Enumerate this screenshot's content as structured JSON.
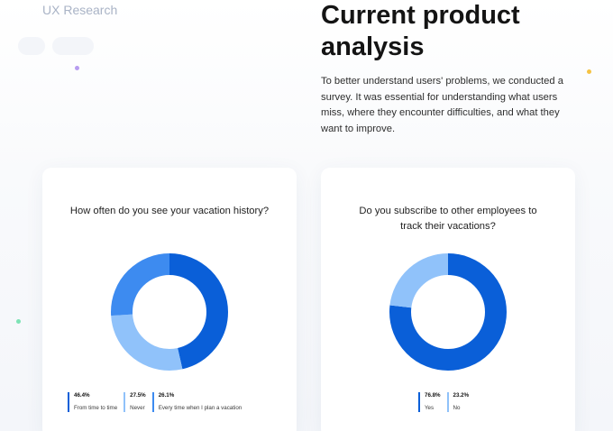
{
  "section_label": "UX Research",
  "title": "Current product analysis",
  "intro": "To better understand users' problems, we conducted a survey. It was essential for understanding what users miss, where they encounter difficulties, and what they want to improve.",
  "colors": {
    "accent_dark": "#0a5fd8",
    "accent_mid": "#3d8bf0",
    "accent_light": "#90c2fa",
    "dot_purple": "#b79cf0",
    "dot_yellow": "#f5c344",
    "dot_green": "#7de3b5"
  },
  "chart_data": [
    {
      "type": "pie",
      "variant": "donut",
      "title": "How often do you see your vacation history?",
      "legend_position": "bottom",
      "slices": [
        {
          "label": "From time to time",
          "value": 46.4,
          "display": "46.4%",
          "color": "#0a5fd8"
        },
        {
          "label": "Never",
          "value": 27.5,
          "display": "27.5%",
          "color": "#90c2fa"
        },
        {
          "label": "Every time when I plan a vacation",
          "value": 26.1,
          "display": "26.1%",
          "color": "#3d8bf0"
        }
      ]
    },
    {
      "type": "pie",
      "variant": "donut",
      "title": "Do you subscribe to other employees to track their vacations?",
      "legend_position": "bottom",
      "slices": [
        {
          "label": "Yes",
          "value": 76.8,
          "display": "76.8%",
          "color": "#0a5fd8"
        },
        {
          "label": "No",
          "value": 23.2,
          "display": "23.2%",
          "color": "#90c2fa"
        }
      ]
    }
  ]
}
